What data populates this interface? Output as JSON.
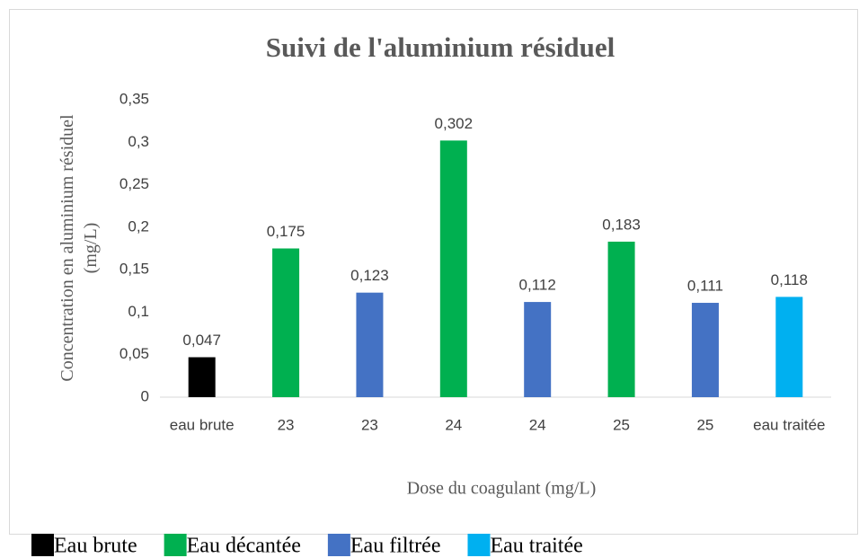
{
  "chart_data": {
    "type": "bar",
    "title": "Suivi de l'aluminium résiduel",
    "xlabel": "Dose du coagulant (mg/L)",
    "ylabel": "Concentration en aluminium résiduel (mg/L)",
    "categories": [
      "eau brute",
      "23",
      "23",
      "24",
      "24",
      "25",
      "25",
      "eau traitée"
    ],
    "series": [
      {
        "name": "Eau brute",
        "color": "#000000",
        "values": [
          0.047,
          null,
          null,
          null,
          null,
          null,
          null,
          null
        ],
        "value_labels": [
          "0,047",
          null,
          null,
          null,
          null,
          null,
          null,
          null
        ]
      },
      {
        "name": "Eau décantée",
        "color": "#00b050",
        "values": [
          null,
          0.175,
          null,
          0.302,
          null,
          0.183,
          null,
          null
        ],
        "value_labels": [
          null,
          "0,175",
          null,
          "0,302",
          null,
          "0,183",
          null,
          null
        ]
      },
      {
        "name": "Eau filtrée",
        "color": "#4472c4",
        "values": [
          null,
          null,
          0.123,
          null,
          0.112,
          null,
          0.111,
          null
        ],
        "value_labels": [
          null,
          null,
          "0,123",
          null,
          "0,112",
          null,
          "0,111",
          null
        ]
      },
      {
        "name": "Eau traitée",
        "color": "#00b0f0",
        "values": [
          null,
          null,
          null,
          null,
          null,
          null,
          null,
          0.118
        ],
        "value_labels": [
          null,
          null,
          null,
          null,
          null,
          null,
          null,
          "0,118"
        ]
      }
    ],
    "ylim": [
      0,
      0.35
    ],
    "yticks": [
      0,
      {
        "value": 0.05,
        "label": "0,05"
      },
      {
        "value": 0.1,
        "label": "0,1"
      },
      {
        "value": 0.15,
        "label": "0,15"
      },
      {
        "value": 0.2,
        "label": "0,2"
      },
      {
        "value": 0.25,
        "label": "0,25"
      },
      {
        "value": 0.3,
        "label": "0,3"
      },
      {
        "value": 0.35,
        "label": "0,35"
      }
    ],
    "grid": false,
    "legend": "bottom"
  }
}
